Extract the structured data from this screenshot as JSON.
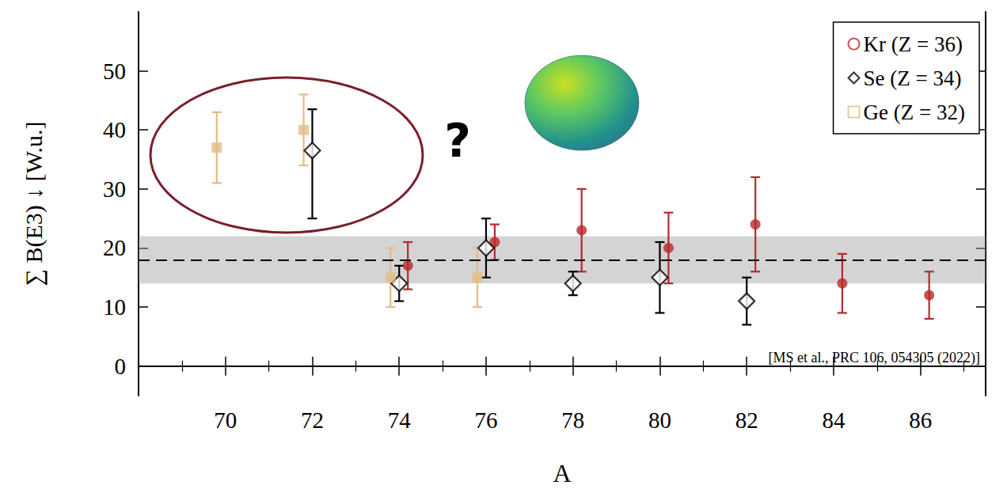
{
  "chart_data": {
    "type": "scatter",
    "x_label": "A",
    "y_label": "∑ B(E3) ↓ [W.u.]",
    "xlim": [
      68,
      87.5
    ],
    "xticks": [
      70,
      72,
      74,
      76,
      78,
      80,
      82,
      84,
      86
    ],
    "ylim": [
      -5,
      60
    ],
    "yticks": [
      0,
      10,
      20,
      30,
      40,
      50
    ],
    "legend": "upper right",
    "reference": {
      "value": 18,
      "band": [
        14,
        22
      ]
    },
    "annotations": [
      "?",
      "[MS et al., PRC 106, 054305 (2022)]"
    ],
    "series": [
      {
        "name": "Kr (Z = 36)",
        "color": "#b8282b",
        "marker": "circle",
        "x": [
          74.2,
          76.2,
          78.2,
          80.2,
          82.2,
          84.2,
          86.2
        ],
        "values": [
          17,
          21,
          23,
          20,
          24,
          14,
          12
        ],
        "lower": [
          13,
          18,
          16,
          14,
          16,
          9,
          8
        ],
        "upper": [
          21,
          24,
          30,
          26,
          32,
          19,
          16
        ]
      },
      {
        "name": "Se (Z = 34)",
        "color": "#000000",
        "marker": "diamond",
        "x": [
          72,
          74,
          76,
          78,
          80,
          82
        ],
        "values": [
          36.5,
          14,
          20,
          14,
          15,
          11
        ],
        "lower": [
          25,
          11,
          15,
          12,
          9,
          7
        ],
        "upper": [
          43.5,
          17,
          25,
          16,
          21,
          15
        ]
      },
      {
        "name": "Ge (Z = 32)",
        "color": "#e3bc86",
        "marker": "square",
        "x": [
          69.8,
          71.8,
          73.8,
          75.8
        ],
        "values": [
          37,
          40,
          15,
          15
        ],
        "lower": [
          31,
          34,
          10,
          10
        ],
        "upper": [
          43,
          46,
          20,
          20
        ]
      }
    ]
  }
}
